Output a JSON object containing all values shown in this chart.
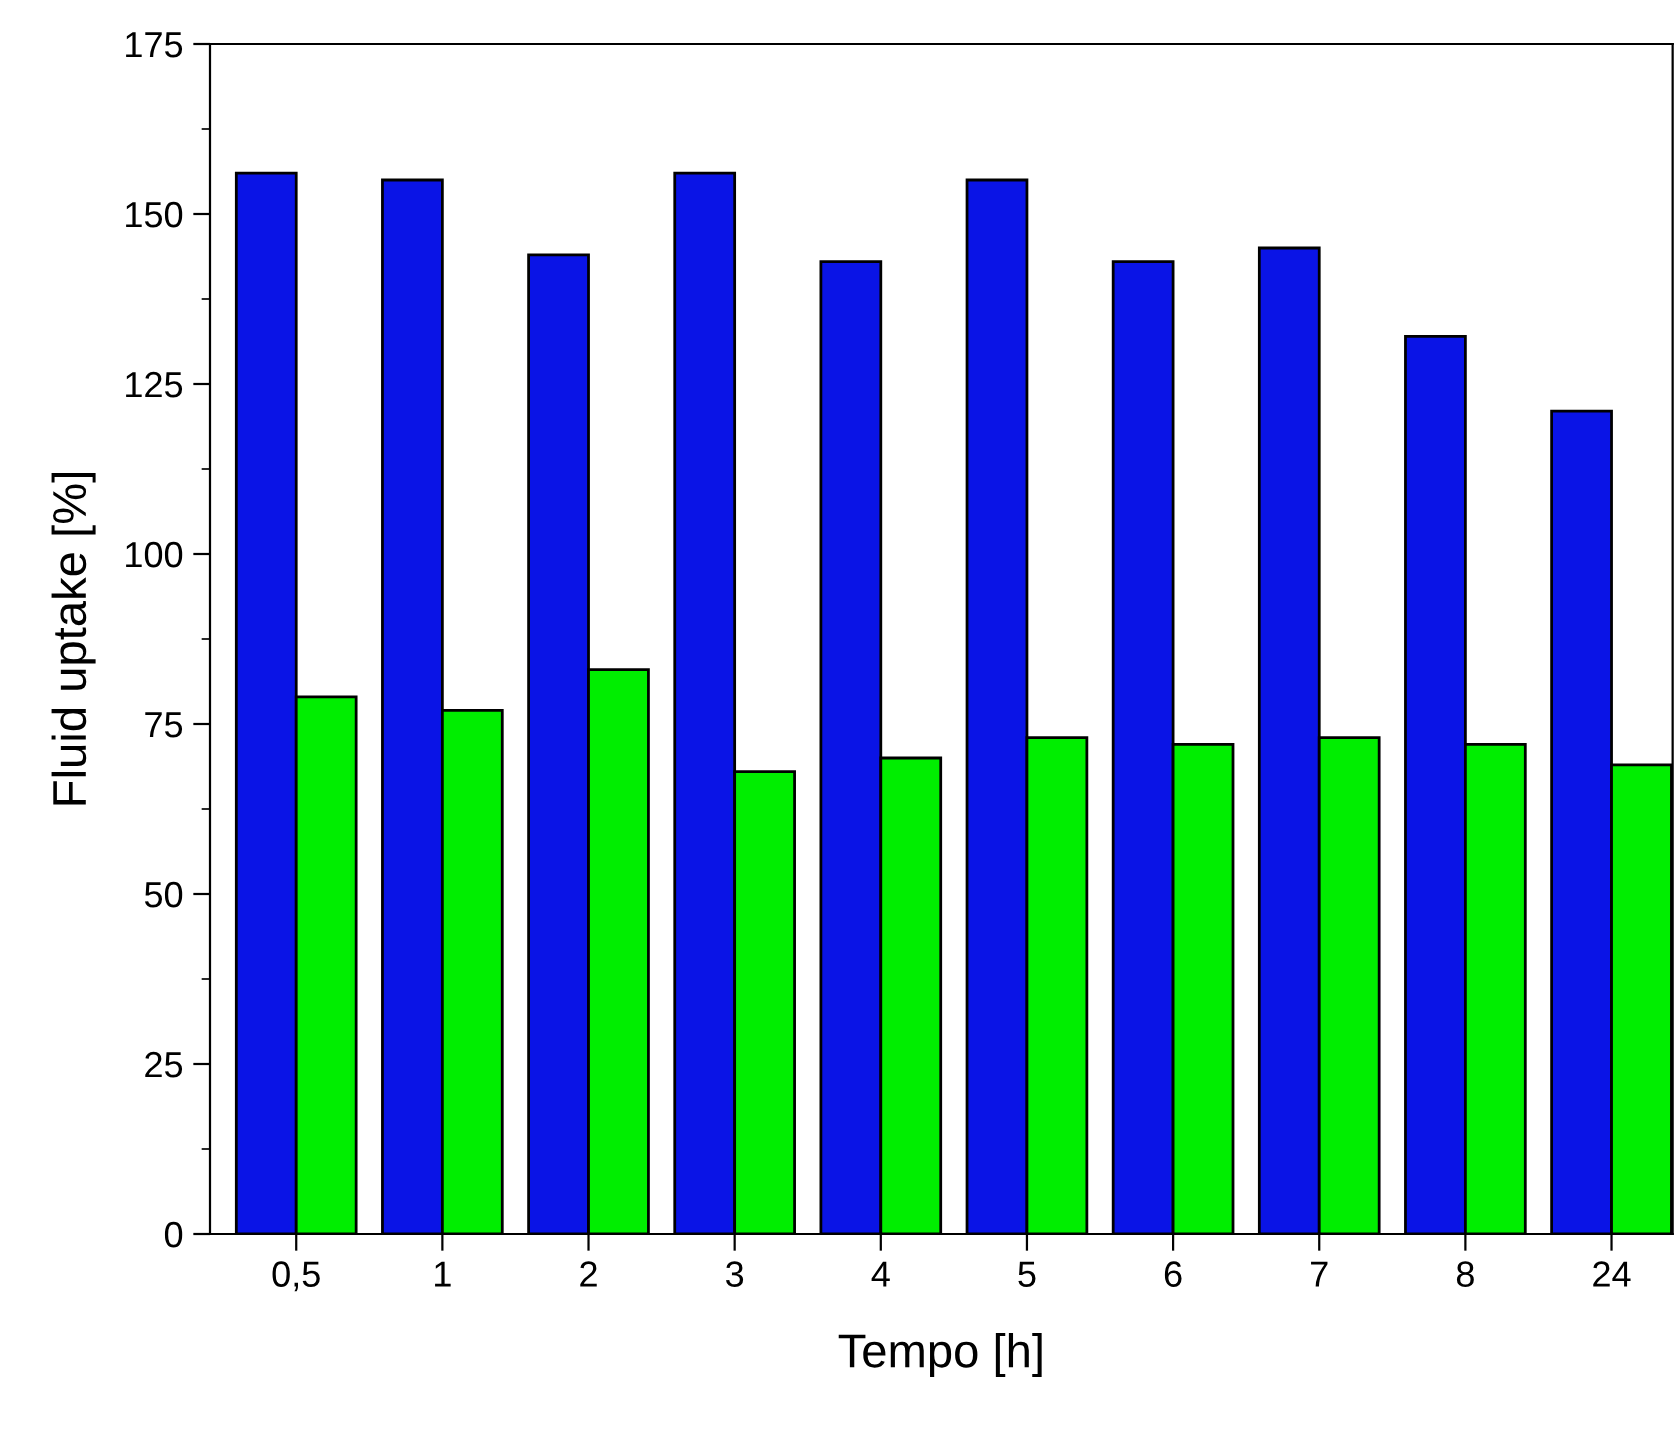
{
  "chart_data": {
    "type": "bar",
    "xlabel": "Tempo [h]",
    "ylabel": "Fluid uptake [%]",
    "categories": [
      "0,5",
      "1",
      "2",
      "3",
      "4",
      "5",
      "6",
      "7",
      "8",
      "24"
    ],
    "series": [
      {
        "color": "#0a14e6",
        "values": [
          156,
          155,
          144,
          156,
          143,
          155,
          143,
          145,
          132,
          121
        ]
      },
      {
        "color": "#00ee00",
        "values": [
          79,
          77,
          83,
          68,
          70,
          73,
          72,
          73,
          72,
          69
        ]
      }
    ],
    "ylim": [
      0,
      175
    ],
    "yticks": [
      0,
      25,
      50,
      75,
      100,
      125,
      150,
      175
    ],
    "grid": false,
    "legend": false
  }
}
